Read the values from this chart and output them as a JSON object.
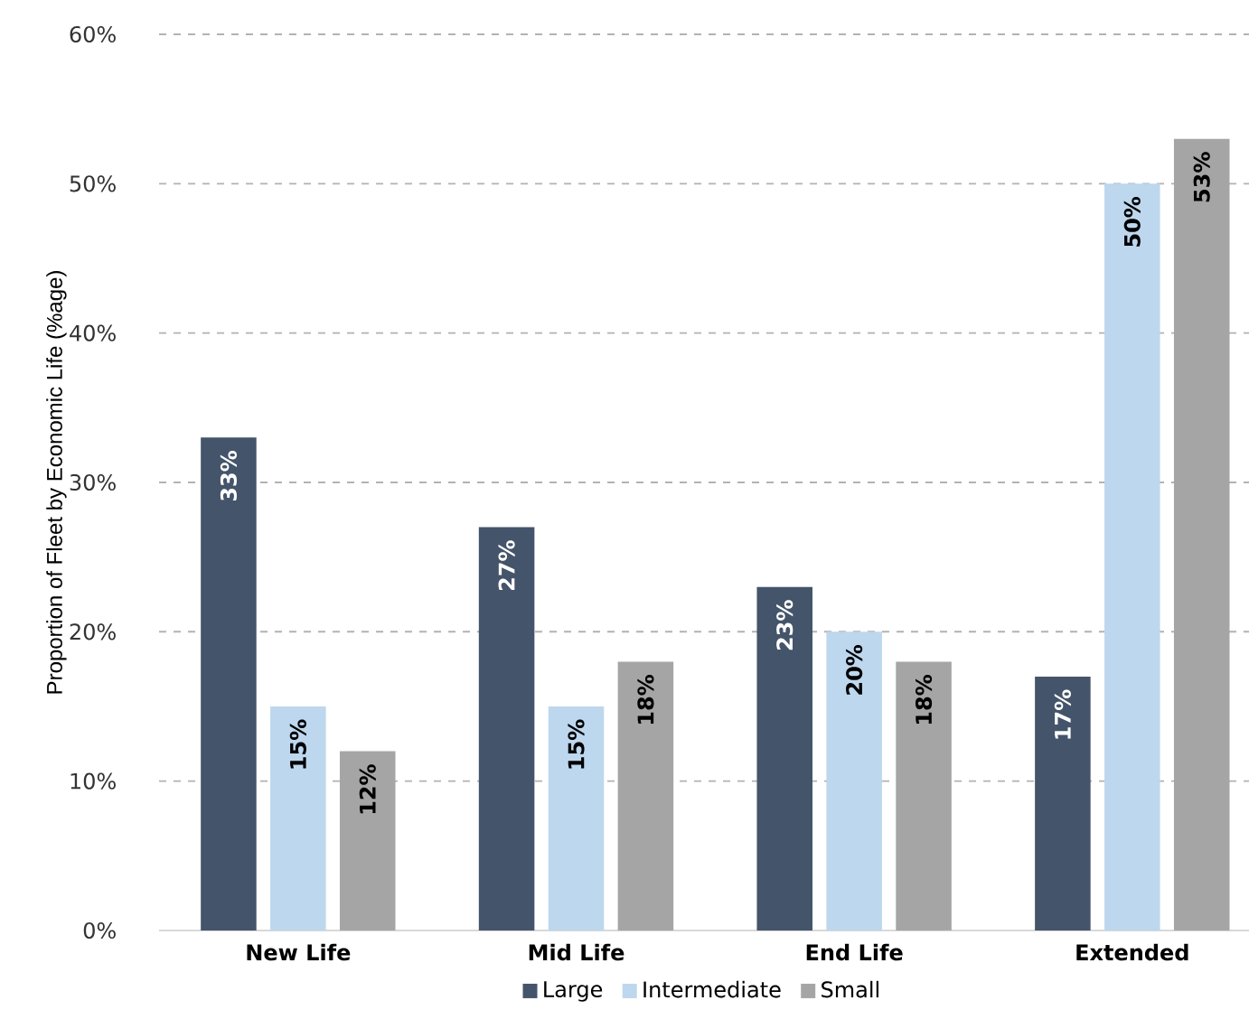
{
  "chart_data": {
    "type": "bar",
    "ylabel": "Proportion of Fleet by Economic Life (%age)",
    "categories": [
      "New Life",
      "Mid Life",
      "End Life",
      "Extended"
    ],
    "series": [
      {
        "name": "Large",
        "color": "#44546a",
        "values": [
          33,
          27,
          23,
          17
        ],
        "value_labels": [
          "33%",
          "27%",
          "23%",
          "17%"
        ]
      },
      {
        "name": "Intermediate",
        "color": "#bdd7ee",
        "values": [
          15,
          15,
          20,
          50
        ],
        "value_labels": [
          "15%",
          "15%",
          "20%",
          "50%"
        ]
      },
      {
        "name": "Small",
        "color": "#a5a5a5",
        "values": [
          12,
          18,
          18,
          53
        ],
        "value_labels": [
          "12%",
          "18%",
          "18%",
          "53%"
        ]
      }
    ],
    "ylim": [
      0,
      60
    ],
    "yticks": [
      {
        "value": 0,
        "label": "0%"
      },
      {
        "value": 10,
        "label": "10%"
      },
      {
        "value": 20,
        "label": "20%"
      },
      {
        "value": 30,
        "label": "30%"
      },
      {
        "value": 40,
        "label": "40%"
      },
      {
        "value": 50,
        "label": "50%"
      },
      {
        "value": 60,
        "label": "60%"
      }
    ],
    "grid": "y",
    "legend": "bottom"
  }
}
